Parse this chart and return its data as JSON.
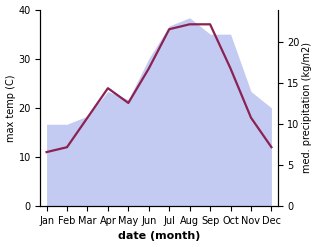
{
  "months": [
    "Jan",
    "Feb",
    "Mar",
    "Apr",
    "May",
    "Jun",
    "Jul",
    "Aug",
    "Sep",
    "Oct",
    "Nov",
    "Dec"
  ],
  "month_x": [
    0,
    1,
    2,
    3,
    4,
    5,
    6,
    7,
    8,
    9,
    10,
    11
  ],
  "temp_max": [
    11,
    12,
    18,
    24,
    21,
    28,
    36,
    37,
    37,
    28,
    18,
    12
  ],
  "precip": [
    10,
    10,
    11,
    14,
    13,
    18,
    22,
    23,
    21,
    21,
    14,
    12
  ],
  "temp_ylim": [
    0,
    40
  ],
  "precip_ylim": [
    0,
    24
  ],
  "precip_right_ticks": [
    0,
    5,
    10,
    15,
    20
  ],
  "temp_left_ticks": [
    0,
    10,
    20,
    30,
    40
  ],
  "fill_color": "#b0baee",
  "fill_alpha": 0.75,
  "line_color": "#8b2252",
  "line_width": 1.6,
  "xlabel": "date (month)",
  "ylabel_left": "max temp (C)",
  "ylabel_right": "med. precipitation (kg/m2)",
  "label_fontsize": 8,
  "tick_fontsize": 7,
  "bg_color": "#ffffff"
}
